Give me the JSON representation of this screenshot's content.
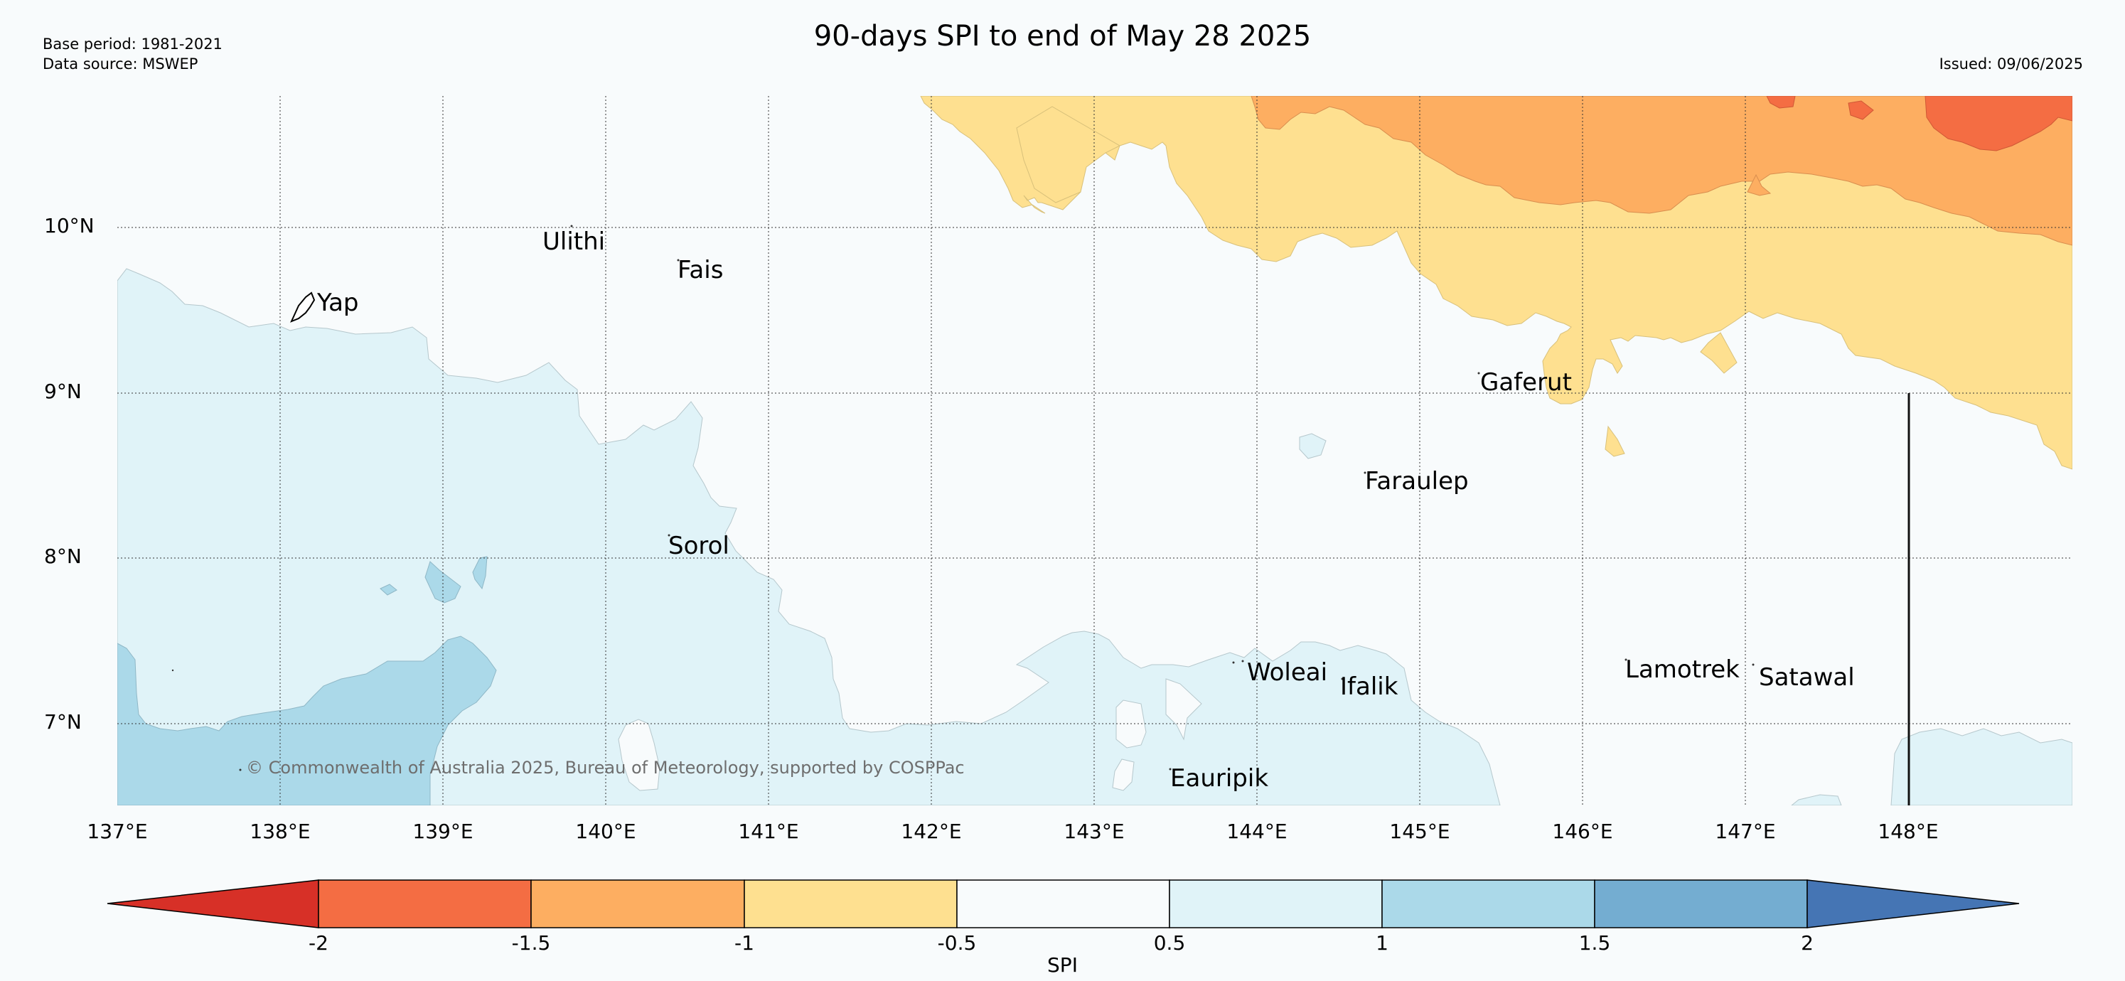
{
  "header": {
    "base_period": "Base period: 1981-2021",
    "data_source": "Data source: MSWEP",
    "title": "90-days SPI to end of May 28 2025",
    "issued": "Issued: 09/06/2025"
  },
  "map": {
    "lat_labels": [
      "10°N",
      "9°N",
      "8°N",
      "7°N"
    ],
    "lon_labels": [
      "137°E",
      "138°E",
      "139°E",
      "140°E",
      "141°E",
      "142°E",
      "143°E",
      "144°E",
      "145°E",
      "146°E",
      "147°E",
      "148°E"
    ],
    "places": {
      "yap": "Yap",
      "ulithi": "Ulithi",
      "fais": "Fais",
      "gaferut": "Gaferut",
      "faraulep": "Faraulep",
      "sorol": "Sorol",
      "woleai": "Woleai",
      "ifalik": "Ifalik",
      "lamotrek": "Lamotrek",
      "satawal": "Satawal",
      "eauripik": "Eauripik"
    },
    "copyright": "© Commonwealth of Australia 2025, Bureau of Meteorology, supported by COSPPac"
  },
  "colorbar": {
    "label": "SPI",
    "ticks": [
      "-2",
      "-1.5",
      "-1",
      "-0.5",
      "0.5",
      "1",
      "1.5",
      "2"
    ],
    "colors": [
      "#d73027",
      "#f46d43",
      "#fdae61",
      "#fee090",
      "#f8fbfc",
      "#e0f3f8",
      "#abd9e9",
      "#74add1",
      "#4575b4"
    ]
  }
}
